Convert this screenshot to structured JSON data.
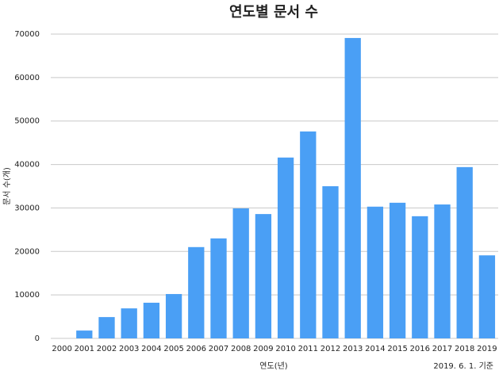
{
  "chart_data": {
    "type": "bar",
    "title": "연도별 문서 수",
    "y_label": "문서 수(개)",
    "x_label": "연도(년)",
    "annotation": "2019. 6. 1. 기준",
    "categories": [
      "2000",
      "2001",
      "2002",
      "2003",
      "2004",
      "2005",
      "2006",
      "2007",
      "2008",
      "2009",
      "2010",
      "2011",
      "2012",
      "2013",
      "2014",
      "2015",
      "2016",
      "2017",
      "2018",
      "2019"
    ],
    "values": [
      0,
      1800,
      4900,
      6900,
      8200,
      10200,
      21000,
      23000,
      29900,
      28600,
      41600,
      47600,
      35000,
      69100,
      30300,
      31200,
      28100,
      30800,
      39400,
      19100
    ],
    "color": "#4a9ff5",
    "ylim": [
      0,
      70000
    ],
    "yticks": [
      0,
      10000,
      20000,
      30000,
      40000,
      50000,
      60000,
      70000
    ],
    "grid": true
  }
}
